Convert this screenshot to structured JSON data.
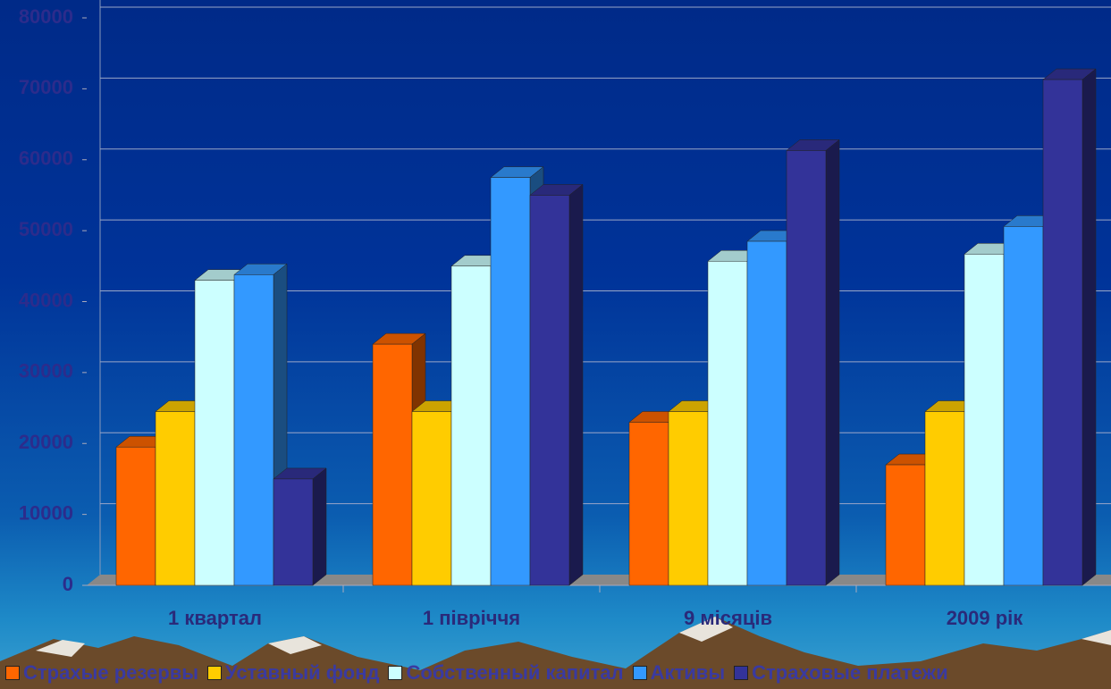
{
  "chart_data": {
    "type": "bar",
    "categories": [
      "1 квартал",
      "1 півріччя",
      "9 місяців",
      "2009 рік"
    ],
    "series": [
      {
        "name": "Страхые резервы",
        "color": "#ff6600",
        "values": [
          19500,
          34000,
          23000,
          17000
        ]
      },
      {
        "name": "Уставный фонд",
        "color": "#ffcc00",
        "values": [
          24500,
          24500,
          24500,
          24500
        ]
      },
      {
        "name": "Собственный капитал",
        "color": "#ccffff",
        "values": [
          43000,
          45000,
          45700,
          46700
        ]
      },
      {
        "name": "Активы",
        "color": "#3399ff",
        "values": [
          43800,
          57500,
          48500,
          50600
        ]
      },
      {
        "name": "Страховые платежи",
        "color": "#333399",
        "values": [
          15000,
          55000,
          61300,
          71300
        ]
      }
    ],
    "ylim": [
      0,
      80000
    ],
    "yticks": [
      0,
      10000,
      20000,
      30000,
      40000,
      50000,
      60000,
      70000,
      80000
    ],
    "grid": true
  }
}
